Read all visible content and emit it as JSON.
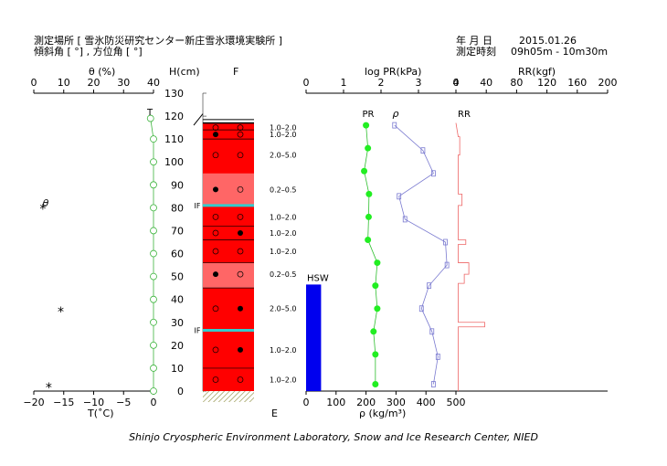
{
  "header": {
    "site_label": "測定場所 [ 雪氷防災研究センター新庄雪氷環境実験所 ]",
    "slope_label": "傾斜角 [ °] , 方位角 [ °]",
    "date_label": "年 月 日",
    "date_value": "2015.01.26",
    "time_label": "測定時刻",
    "time_value": "09h05m - 10m30m"
  },
  "axes": {
    "theta_title": "θ (%)",
    "h_title": "H(cm)",
    "f_label": "F",
    "pr_title": "log PR(kPa)",
    "rr_title": "RR(kgf)",
    "t_title": "T(˚C)",
    "e_label": "E",
    "rho_title": "ρ (kg/m³)",
    "rho_marker": "ρ",
    "pr_marker": "PR",
    "rr_marker": "RR",
    "t_marker": "T",
    "theta_marker": "θ",
    "hsw_label": "HSW",
    "theta_ticks": [
      "0",
      "10",
      "20",
      "30",
      "40"
    ],
    "t_ticks": [
      "−20",
      "−15",
      "−10",
      "−5",
      "0"
    ],
    "h_ticks": [
      "0",
      "10",
      "20",
      "30",
      "40",
      "50",
      "60",
      "70",
      "80",
      "90",
      "100",
      "110",
      "120",
      "130"
    ],
    "pr_ticks": [
      "0",
      "1",
      "2",
      "3",
      "4"
    ],
    "rr_ticks": [
      "0",
      "40",
      "80",
      "120",
      "160",
      "200"
    ],
    "rho_ticks": [
      "0",
      "100",
      "200",
      "300",
      "400",
      "500"
    ]
  },
  "chart_data": {
    "type": "snow-profile",
    "height_range": [
      0,
      130
    ],
    "temperature": {
      "unit": "°C",
      "range": [
        -20,
        0
      ],
      "h": [
        0,
        10,
        20,
        30,
        40,
        50,
        60,
        70,
        80,
        90,
        100,
        110,
        119
      ],
      "values": [
        0,
        0,
        0,
        0,
        0,
        0,
        0,
        0,
        0,
        0,
        0,
        0,
        -0.5
      ]
    },
    "moisture_theta": [
      {
        "h": 80,
        "value": -18.5
      },
      {
        "h": 35,
        "value": -15.5
      },
      {
        "h": 2,
        "value": -17.5
      }
    ],
    "layers": [
      {
        "from": 0,
        "to": 117,
        "color": "#ff0000"
      },
      {
        "from": 81,
        "to": 95,
        "color": "#ff6666"
      },
      {
        "from": 45,
        "to": 56,
        "color": "#ff6666"
      }
    ],
    "layer_lines": [
      114,
      110,
      81,
      72,
      66,
      56,
      45,
      27,
      10
    ],
    "ice_films": [
      {
        "h": 81,
        "label": "IF"
      },
      {
        "h": 26.5,
        "label": "IF"
      }
    ],
    "grain_marks": [
      {
        "h": 115,
        "left": "o",
        "right": "o"
      },
      {
        "h": 112,
        "left": "*",
        "right": "o"
      },
      {
        "h": 103,
        "left": "o",
        "right": "o"
      },
      {
        "h": 88,
        "left": "*",
        "right": "o"
      },
      {
        "h": 76,
        "left": "o",
        "right": "o"
      },
      {
        "h": 69,
        "left": "o",
        "right": "*"
      },
      {
        "h": 61,
        "left": "o",
        "right": "o"
      },
      {
        "h": 51,
        "left": "*",
        "right": "o"
      },
      {
        "h": 36,
        "left": "o",
        "right": "*"
      },
      {
        "h": 18,
        "left": "o",
        "right": "*"
      },
      {
        "h": 5,
        "left": "o",
        "right": "o"
      }
    ],
    "grain_sizes": [
      {
        "h": 115,
        "text": "1.0–2.0"
      },
      {
        "h": 112,
        "text": "1.0–2.0"
      },
      {
        "h": 103,
        "text": "2.0–5.0"
      },
      {
        "h": 88,
        "text": "0.2–0.5"
      },
      {
        "h": 76,
        "text": "1.0–2.0"
      },
      {
        "h": 69,
        "text": "1.0–2.0"
      },
      {
        "h": 61,
        "text": "1.0–2.0"
      },
      {
        "h": 51,
        "text": "0.2–0.5"
      },
      {
        "h": 36,
        "text": "2.0–5.0"
      },
      {
        "h": 18,
        "text": "1.0–2.0"
      },
      {
        "h": 5,
        "text": "1.0–2.0"
      }
    ],
    "hsw": {
      "label": "HSW",
      "h": 46.5,
      "rho_width": 50
    },
    "pr_log": {
      "unit": "kPa",
      "h": [
        116,
        106,
        96,
        86,
        76,
        66,
        56,
        46,
        36,
        26,
        16,
        3
      ],
      "values": [
        1.6,
        1.65,
        1.55,
        1.68,
        1.67,
        1.65,
        1.9,
        1.85,
        1.9,
        1.8,
        1.85,
        1.85
      ]
    },
    "density": {
      "unit": "kg/m³",
      "h": [
        116,
        105,
        95,
        85,
        75,
        65,
        55,
        46,
        36,
        26,
        15,
        3
      ],
      "values": [
        295,
        390,
        425,
        310,
        330,
        465,
        470,
        410,
        385,
        420,
        440,
        425
      ]
    },
    "ram_resistance": {
      "unit": "kgf",
      "range": [
        0,
        200
      ],
      "segments": [
        [
          117,
          0
        ],
        [
          111,
          3
        ],
        [
          111,
          5
        ],
        [
          103,
          5
        ],
        [
          103,
          3
        ],
        [
          86,
          3
        ],
        [
          86,
          8
        ],
        [
          81,
          8
        ],
        [
          81,
          3
        ],
        [
          66,
          3
        ],
        [
          66,
          13
        ],
        [
          64,
          13
        ],
        [
          64,
          3
        ],
        [
          56,
          3
        ],
        [
          56,
          17
        ],
        [
          51,
          17
        ],
        [
          51,
          11
        ],
        [
          47,
          11
        ],
        [
          47,
          3
        ],
        [
          30,
          3
        ],
        [
          30,
          38
        ],
        [
          28,
          38
        ],
        [
          28,
          3
        ],
        [
          0,
          3
        ]
      ]
    },
    "note": ""
  },
  "footer": "Shinjo Cryospheric Environment Laboratory, Snow and Ice Research Center, NIED"
}
